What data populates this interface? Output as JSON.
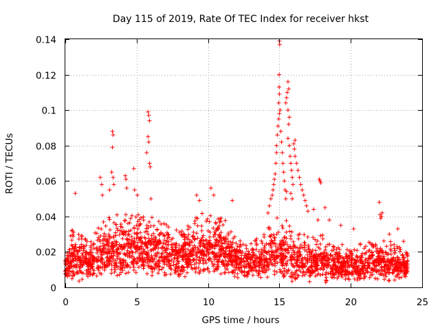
{
  "chart_data": {
    "type": "scatter",
    "title": "Day 115 of 2019, Rate Of TEC Index for receiver hkst",
    "xlabel": "GPS time / hours",
    "ylabel": "ROTI / TECUs",
    "xlim": [
      0,
      25
    ],
    "ylim": [
      0,
      0.14
    ],
    "xticks": [
      0,
      5,
      10,
      15,
      20,
      25
    ],
    "xtick_labels": [
      "0",
      "5",
      "10",
      "15",
      "20",
      "25"
    ],
    "yticks": [
      0,
      0.02,
      0.04,
      0.06,
      0.08,
      0.1,
      0.12,
      0.14
    ],
    "ytick_labels": [
      "0",
      "0.02",
      "0.04",
      "0.06",
      "0.08",
      "0.1",
      "0.12",
      "0.14"
    ],
    "grid": true,
    "marker": "plus",
    "series": [
      {
        "name": "ROTI",
        "color": "#ff0000",
        "band": [
          [
            0.0,
            0.005,
            0.022
          ],
          [
            0.5,
            0.006,
            0.033
          ],
          [
            1.0,
            0.005,
            0.03
          ],
          [
            1.5,
            0.006,
            0.028
          ],
          [
            2.0,
            0.006,
            0.03
          ],
          [
            2.5,
            0.007,
            0.036
          ],
          [
            3.0,
            0.007,
            0.04
          ],
          [
            3.5,
            0.008,
            0.042
          ],
          [
            4.0,
            0.007,
            0.04
          ],
          [
            4.5,
            0.008,
            0.045
          ],
          [
            5.0,
            0.008,
            0.042
          ],
          [
            5.5,
            0.008,
            0.044
          ],
          [
            6.0,
            0.008,
            0.04
          ],
          [
            6.5,
            0.008,
            0.038
          ],
          [
            7.0,
            0.008,
            0.036
          ],
          [
            7.5,
            0.007,
            0.034
          ],
          [
            8.0,
            0.007,
            0.032
          ],
          [
            8.5,
            0.008,
            0.034
          ],
          [
            9.0,
            0.008,
            0.04
          ],
          [
            9.5,
            0.008,
            0.042
          ],
          [
            10.0,
            0.008,
            0.045
          ],
          [
            10.5,
            0.008,
            0.044
          ],
          [
            11.0,
            0.008,
            0.042
          ],
          [
            11.5,
            0.007,
            0.036
          ],
          [
            12.0,
            0.006,
            0.028
          ],
          [
            12.5,
            0.006,
            0.026
          ],
          [
            13.0,
            0.006,
            0.026
          ],
          [
            13.5,
            0.006,
            0.028
          ],
          [
            14.0,
            0.006,
            0.032
          ],
          [
            14.5,
            0.006,
            0.04
          ],
          [
            15.0,
            0.005,
            0.04
          ],
          [
            15.5,
            0.005,
            0.038
          ],
          [
            16.0,
            0.005,
            0.032
          ],
          [
            16.5,
            0.005,
            0.03
          ],
          [
            17.0,
            0.005,
            0.03
          ],
          [
            17.5,
            0.005,
            0.028
          ],
          [
            18.0,
            0.005,
            0.03
          ],
          [
            18.5,
            0.005,
            0.028
          ],
          [
            19.0,
            0.005,
            0.026
          ],
          [
            19.5,
            0.005,
            0.024
          ],
          [
            20.0,
            0.004,
            0.026
          ],
          [
            20.5,
            0.004,
            0.024
          ],
          [
            21.0,
            0.005,
            0.026
          ],
          [
            21.5,
            0.005,
            0.028
          ],
          [
            22.0,
            0.005,
            0.028
          ],
          [
            22.5,
            0.005,
            0.026
          ],
          [
            23.0,
            0.005,
            0.026
          ],
          [
            23.5,
            0.005,
            0.022
          ],
          [
            24.0,
            0.005,
            0.02
          ]
        ],
        "outliers": [
          [
            0.7,
            0.053
          ],
          [
            2.45,
            0.062
          ],
          [
            2.55,
            0.058
          ],
          [
            2.6,
            0.052
          ],
          [
            3.3,
            0.088
          ],
          [
            3.35,
            0.086
          ],
          [
            3.3,
            0.079
          ],
          [
            3.25,
            0.065
          ],
          [
            3.35,
            0.062
          ],
          [
            3.4,
            0.058
          ],
          [
            3.1,
            0.055
          ],
          [
            4.2,
            0.063
          ],
          [
            4.25,
            0.061
          ],
          [
            4.3,
            0.056
          ],
          [
            4.8,
            0.067
          ],
          [
            4.85,
            0.055
          ],
          [
            5.05,
            0.052
          ],
          [
            5.8,
            0.099
          ],
          [
            5.85,
            0.097
          ],
          [
            5.9,
            0.094
          ],
          [
            5.8,
            0.085
          ],
          [
            5.85,
            0.082
          ],
          [
            5.7,
            0.076
          ],
          [
            5.9,
            0.07
          ],
          [
            5.95,
            0.068
          ],
          [
            6.0,
            0.05
          ],
          [
            9.2,
            0.052
          ],
          [
            9.4,
            0.049
          ],
          [
            10.2,
            0.056
          ],
          [
            10.4,
            0.052
          ],
          [
            11.7,
            0.049
          ],
          [
            14.2,
            0.042
          ],
          [
            14.3,
            0.046
          ],
          [
            14.4,
            0.05
          ],
          [
            14.5,
            0.052
          ],
          [
            14.55,
            0.055
          ],
          [
            14.6,
            0.058
          ],
          [
            14.65,
            0.061
          ],
          [
            14.7,
            0.064
          ],
          [
            14.75,
            0.07
          ],
          [
            14.8,
            0.076
          ],
          [
            14.8,
            0.08
          ],
          [
            14.85,
            0.086
          ],
          [
            14.9,
            0.091
          ],
          [
            14.95,
            0.095
          ],
          [
            15.0,
            0.098
          ],
          [
            15.05,
            0.1
          ],
          [
            14.95,
            0.104
          ],
          [
            15.0,
            0.109
          ],
          [
            14.98,
            0.113
          ],
          [
            14.98,
            0.12
          ],
          [
            15.02,
            0.137
          ],
          [
            15.0,
            0.139
          ],
          [
            15.1,
            0.088
          ],
          [
            15.15,
            0.082
          ],
          [
            15.2,
            0.076
          ],
          [
            15.25,
            0.07
          ],
          [
            15.3,
            0.065
          ],
          [
            15.35,
            0.06
          ],
          [
            15.4,
            0.055
          ],
          [
            15.45,
            0.05
          ],
          [
            15.5,
            0.054
          ],
          [
            15.45,
            0.104
          ],
          [
            15.5,
            0.107
          ],
          [
            15.55,
            0.11
          ],
          [
            15.6,
            0.116
          ],
          [
            15.65,
            0.112
          ],
          [
            15.6,
            0.1
          ],
          [
            15.65,
            0.092
          ],
          [
            15.7,
            0.096
          ],
          [
            15.6,
            0.084
          ],
          [
            15.7,
            0.08
          ],
          [
            15.75,
            0.074
          ],
          [
            15.8,
            0.07
          ],
          [
            15.85,
            0.066
          ],
          [
            15.9,
            0.062
          ],
          [
            15.95,
            0.058
          ],
          [
            15.8,
            0.053
          ],
          [
            15.9,
            0.05
          ],
          [
            16.0,
            0.081
          ],
          [
            16.1,
            0.083
          ],
          [
            16.05,
            0.078
          ],
          [
            16.1,
            0.074
          ],
          [
            16.2,
            0.07
          ],
          [
            16.3,
            0.066
          ],
          [
            16.4,
            0.062
          ],
          [
            16.5,
            0.058
          ],
          [
            16.6,
            0.055
          ],
          [
            16.7,
            0.052
          ],
          [
            16.8,
            0.049
          ],
          [
            16.9,
            0.046
          ],
          [
            17.0,
            0.043
          ],
          [
            17.4,
            0.044
          ],
          [
            17.7,
            0.038
          ],
          [
            17.8,
            0.061
          ],
          [
            17.85,
            0.06
          ],
          [
            17.9,
            0.059
          ],
          [
            18.2,
            0.045
          ],
          [
            18.5,
            0.038
          ],
          [
            19.3,
            0.035
          ],
          [
            20.2,
            0.033
          ],
          [
            22.0,
            0.048
          ],
          [
            22.05,
            0.041
          ],
          [
            22.1,
            0.039
          ],
          [
            22.15,
            0.04
          ],
          [
            22.2,
            0.042
          ],
          [
            22.7,
            0.03
          ],
          [
            23.3,
            0.033
          ],
          [
            23.7,
            0.026
          ]
        ]
      }
    ]
  }
}
